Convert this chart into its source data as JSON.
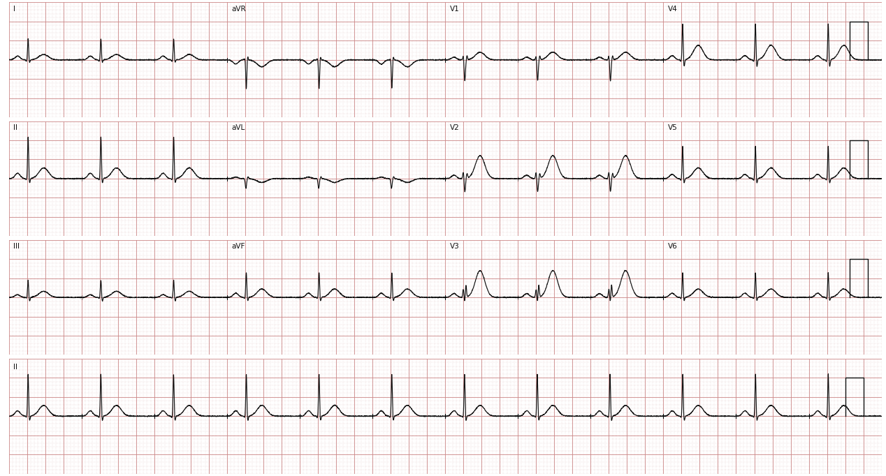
{
  "bg_color": "#ffffff",
  "row_bg_color": "#ffffff",
  "grid_major_color": "#cc8888",
  "grid_minor_color": "#ddbbbb",
  "line_color": "#111111",
  "label_color": "#111111",
  "fig_width": 12.68,
  "fig_height": 6.82,
  "dpi": 100,
  "row_gap_color": "#e0e0e0",
  "leads_row1": [
    "I",
    "aVR",
    "V1",
    "V4"
  ],
  "leads_row2": [
    "II",
    "aVL",
    "V2",
    "V5"
  ],
  "leads_row3": [
    "III",
    "aVF",
    "V3",
    "V6"
  ],
  "leads_row4": [
    "II"
  ]
}
